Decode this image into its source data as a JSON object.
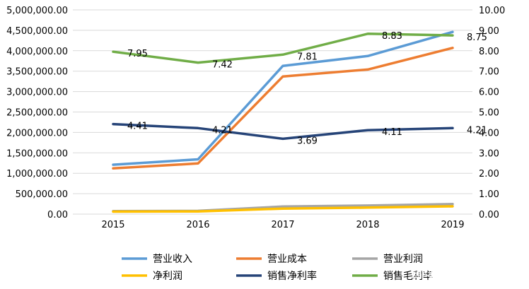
{
  "chart_data": {
    "type": "line",
    "categories": [
      "2015",
      "2016",
      "2017",
      "2018",
      "2019"
    ],
    "y_left": {
      "ylim": [
        0,
        5000000
      ],
      "ticks": [
        "0.00",
        "500,000.00",
        "1,000,000.00",
        "1,500,000.00",
        "2,000,000.00",
        "2,500,000.00",
        "3,000,000.00",
        "3,500,000.00",
        "4,000,000.00",
        "4,500,000.00",
        "5,000,000.00"
      ]
    },
    "y_right": {
      "ylim": [
        0,
        10
      ],
      "ticks": [
        "0.00",
        "1.00",
        "2.00",
        "3.00",
        "4.00",
        "5.00",
        "6.00",
        "7.00",
        "8.00",
        "9.00",
        "10.00"
      ]
    },
    "series": [
      {
        "name": "营业收入",
        "axis": "left",
        "color": "#5B9BD5",
        "values": [
          1210000,
          1340000,
          3630000,
          3870000,
          4460000
        ]
      },
      {
        "name": "营业成本",
        "axis": "left",
        "color": "#ED7D31",
        "values": [
          1120000,
          1240000,
          3370000,
          3540000,
          4070000
        ]
      },
      {
        "name": "营业利润",
        "axis": "left",
        "color": "#A5A5A5",
        "values": [
          75000,
          80000,
          185000,
          210000,
          245000
        ]
      },
      {
        "name": "净利润",
        "axis": "left",
        "color": "#FFC000",
        "values": [
          60000,
          65000,
          135000,
          160000,
          190000
        ]
      },
      {
        "name": "销售净利率",
        "axis": "right",
        "color": "#264478",
        "values": [
          4.41,
          4.21,
          3.69,
          4.11,
          4.21
        ],
        "labels": [
          "4.41",
          "4.21",
          "3.69",
          "4.11",
          "4.21"
        ]
      },
      {
        "name": "销售毛利率",
        "axis": "right",
        "color": "#70AD47",
        "values": [
          7.95,
          7.42,
          7.81,
          8.83,
          8.75
        ],
        "labels": [
          "7.95",
          "7.42",
          "7.81",
          "8.83",
          "8.75"
        ]
      }
    ],
    "legend_position": "bottom",
    "grid": true
  },
  "watermark": "雪球：OT通"
}
